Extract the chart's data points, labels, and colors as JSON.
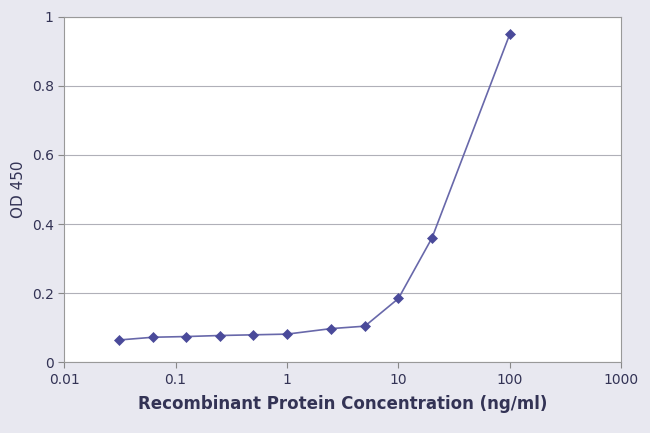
{
  "x": [
    0.031,
    0.063,
    0.125,
    0.25,
    0.5,
    1.0,
    2.5,
    5.0,
    10.0,
    20.0,
    100.0
  ],
  "y": [
    0.065,
    0.073,
    0.075,
    0.078,
    0.08,
    0.082,
    0.098,
    0.105,
    0.185,
    0.36,
    0.95
  ],
  "line_color": "#6868aa",
  "marker_color": "#4a4a9a",
  "marker_size": 5,
  "xlabel": "Recombinant Protein Concentration (ng/ml)",
  "ylabel": "OD 450",
  "xlim_log": [
    0.01,
    1000
  ],
  "ylim": [
    0,
    1.0
  ],
  "yticks": [
    0,
    0.2,
    0.4,
    0.6,
    0.8,
    1.0
  ],
  "ytick_labels": [
    "0",
    "0.2",
    "0.4",
    "0.6",
    "0.8",
    "1"
  ],
  "xtick_positions": [
    0.01,
    0.1,
    1,
    10,
    100,
    1000
  ],
  "xtick_labels": [
    "0.01",
    "0.1",
    "1",
    "10",
    "100",
    "1000"
  ],
  "grid_color": "#b0b0b8",
  "background_color": "#e8e8f0",
  "plot_bg_color": "#ffffff",
  "xlabel_fontsize": 12,
  "ylabel_fontsize": 11,
  "tick_fontsize": 10,
  "label_color": "#333355"
}
